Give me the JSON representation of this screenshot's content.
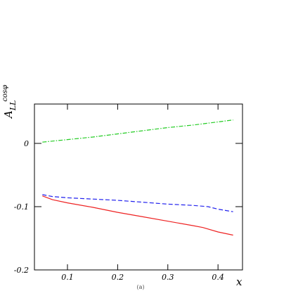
{
  "chart_data": {
    "type": "line",
    "title": "",
    "xlabel": "x",
    "ylabel_main": "A",
    "ylabel_sub": "LL",
    "ylabel_sup": "cosφ",
    "caption": "(a)",
    "xlim": [
      0.0342,
      0.4488
    ],
    "ylim": [
      -0.2,
      0.0622
    ],
    "xticks": [
      0.1,
      0.2,
      0.3,
      0.4
    ],
    "xtick_labels": [
      "0.1",
      "0.2",
      "0.3",
      "0.4"
    ],
    "yticks": [
      0,
      -0.1,
      -0.2
    ],
    "ytick_labels": [
      "0",
      "-0.1",
      "-0.2"
    ],
    "grid": false,
    "series": [
      {
        "id": "green-dashdot",
        "color": "#22cc22",
        "style": "dashdot",
        "x": [
          0.05,
          0.1,
          0.15,
          0.2,
          0.25,
          0.3,
          0.35,
          0.4,
          0.43
        ],
        "y": [
          0.002,
          0.006,
          0.01,
          0.015,
          0.02,
          0.025,
          0.029,
          0.034,
          0.037
        ]
      },
      {
        "id": "blue-dashed",
        "color": "#2222ee",
        "style": "dashed",
        "x": [
          0.05,
          0.07,
          0.1,
          0.15,
          0.2,
          0.25,
          0.3,
          0.35,
          0.38,
          0.4,
          0.43
        ],
        "y": [
          -0.081,
          -0.084,
          -0.086,
          -0.088,
          -0.09,
          -0.093,
          -0.096,
          -0.098,
          -0.1,
          -0.104,
          -0.108
        ]
      },
      {
        "id": "red-solid",
        "color": "#ee2222",
        "style": "solid",
        "x": [
          0.05,
          0.07,
          0.1,
          0.15,
          0.2,
          0.25,
          0.3,
          0.35,
          0.37,
          0.4,
          0.43
        ],
        "y": [
          -0.083,
          -0.089,
          -0.094,
          -0.101,
          -0.109,
          -0.116,
          -0.123,
          -0.13,
          -0.133,
          -0.14,
          -0.145
        ]
      }
    ]
  }
}
